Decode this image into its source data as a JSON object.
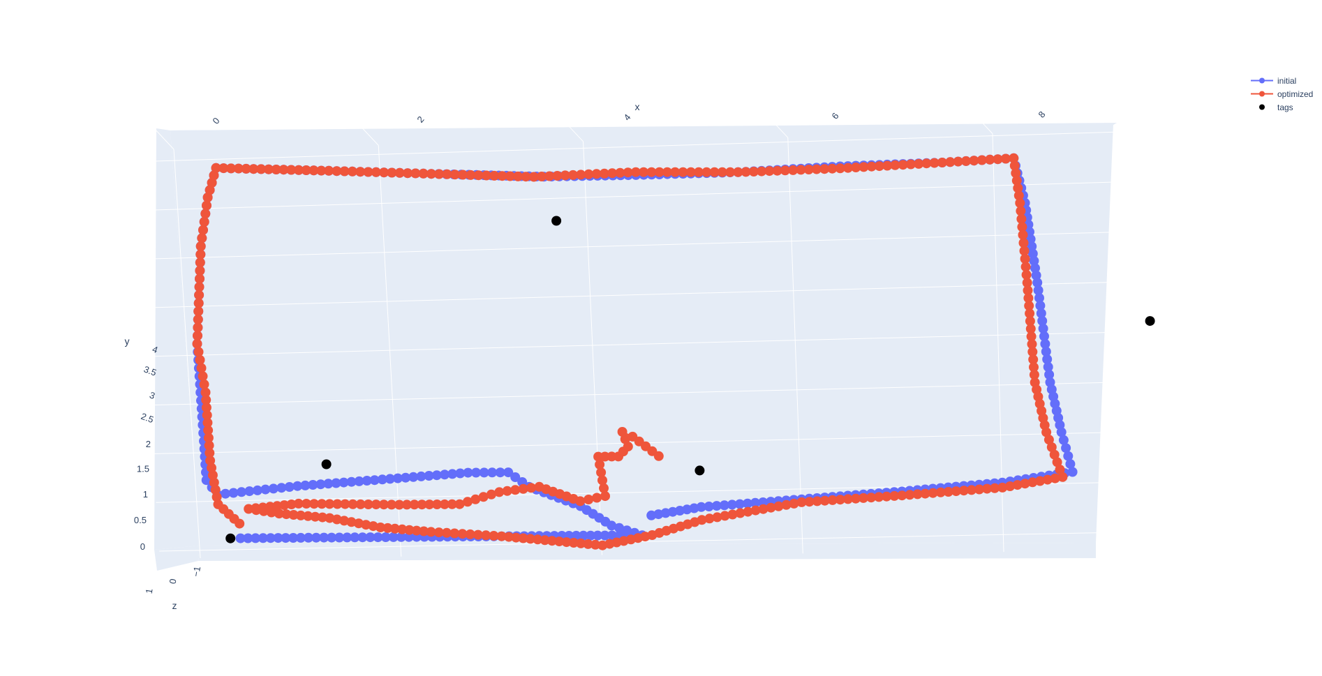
{
  "chart_data": {
    "type": "scatter3d",
    "axes": {
      "x": {
        "label": "x",
        "ticks": [
          0,
          2,
          4,
          6,
          8
        ],
        "tick_labels": [
          "0",
          "2",
          "4",
          "6",
          "8"
        ]
      },
      "y": {
        "label": "y",
        "ticks": [
          0,
          0.5,
          1,
          1.5,
          2,
          2.5,
          3,
          3.5,
          4
        ],
        "tick_labels": [
          "0",
          "0.5",
          "1",
          "1.5",
          "2",
          "2.5",
          "3",
          "3.5",
          "4"
        ]
      },
      "z": {
        "label": "z",
        "ticks": [
          1,
          0,
          -1
        ],
        "tick_labels": [
          "1",
          "0",
          "−1"
        ]
      }
    },
    "background_color": "#e5ecf6",
    "legend_position": "top-right",
    "series": [
      {
        "name": "initial",
        "mode": "lines+markers",
        "color": "#636efa",
        "points": [
          [
            0.4,
            0.0
          ],
          [
            1.0,
            0.0
          ],
          [
            2.0,
            0.0
          ],
          [
            3.0,
            0.0
          ],
          [
            3.6,
            0.0
          ],
          [
            4.1,
            0.0
          ],
          [
            4.4,
            0.0
          ],
          [
            4.1,
            0.1
          ],
          [
            3.8,
            0.3
          ],
          [
            3.3,
            0.5
          ],
          [
            3.1,
            0.65
          ],
          [
            2.7,
            0.65
          ],
          [
            2.0,
            0.6
          ],
          [
            1.0,
            0.53
          ],
          [
            0.2,
            0.45
          ],
          [
            0.1,
            0.6
          ],
          [
            0.1,
            1.0
          ],
          [
            0.1,
            1.5
          ],
          [
            0.1,
            2.0
          ],
          [
            0.15,
            2.5
          ],
          [
            0.2,
            3.0
          ],
          [
            0.3,
            3.5
          ],
          [
            0.4,
            3.8
          ],
          [
            1.5,
            3.75
          ],
          [
            2.5,
            3.7
          ],
          [
            3.6,
            3.65
          ],
          [
            4.5,
            3.65
          ],
          [
            5.5,
            3.66
          ],
          [
            6.5,
            3.7
          ],
          [
            7.5,
            3.72
          ],
          [
            8.2,
            3.75
          ],
          [
            8.3,
            3.3
          ],
          [
            8.4,
            2.5
          ],
          [
            8.5,
            1.5
          ],
          [
            8.6,
            1.0
          ],
          [
            8.7,
            0.6
          ],
          [
            8.0,
            0.5
          ],
          [
            7.0,
            0.42
          ],
          [
            6.0,
            0.35
          ],
          [
            5.0,
            0.28
          ],
          [
            4.5,
            0.2
          ]
        ]
      },
      {
        "name": "optimized",
        "mode": "lines+markers",
        "color": "#ef553b",
        "points": [
          [
            0.4,
            0.15
          ],
          [
            0.2,
            0.35
          ],
          [
            0.15,
            0.8
          ],
          [
            0.15,
            1.5
          ],
          [
            0.1,
            2.0
          ],
          [
            0.15,
            2.5
          ],
          [
            0.2,
            3.0
          ],
          [
            0.3,
            3.5
          ],
          [
            0.4,
            3.8
          ],
          [
            1.5,
            3.75
          ],
          [
            2.5,
            3.7
          ],
          [
            3.5,
            3.65
          ],
          [
            4.5,
            3.68
          ],
          [
            5.5,
            3.66
          ],
          [
            6.5,
            3.68
          ],
          [
            7.5,
            3.72
          ],
          [
            8.2,
            3.75
          ],
          [
            8.25,
            3.3
          ],
          [
            8.3,
            2.5
          ],
          [
            8.35,
            1.5
          ],
          [
            8.45,
            1.0
          ],
          [
            8.6,
            0.55
          ],
          [
            8.0,
            0.45
          ],
          [
            7.0,
            0.38
          ],
          [
            6.0,
            0.32
          ],
          [
            5.0,
            0.15
          ],
          [
            4.5,
            0.0
          ],
          [
            4.0,
            -0.1
          ],
          [
            3.5,
            -0.05
          ],
          [
            3.0,
            0.0
          ],
          [
            2.3,
            0.05
          ],
          [
            1.8,
            0.1
          ],
          [
            1.3,
            0.2
          ],
          [
            0.8,
            0.25
          ],
          [
            0.5,
            0.3
          ],
          [
            1.0,
            0.35
          ],
          [
            2.0,
            0.33
          ],
          [
            2.6,
            0.33
          ],
          [
            3.0,
            0.45
          ],
          [
            3.4,
            0.5
          ],
          [
            3.8,
            0.35
          ],
          [
            4.05,
            0.4
          ],
          [
            4.0,
            0.8
          ],
          [
            4.2,
            0.8
          ],
          [
            4.3,
            0.9
          ],
          [
            4.25,
            1.05
          ],
          [
            4.35,
            1.0
          ],
          [
            4.6,
            0.8
          ]
        ]
      },
      {
        "name": "tags",
        "mode": "markers",
        "color": "#000000",
        "points": [
          [
            0.3,
            0.0
          ],
          [
            1.3,
            0.75
          ],
          [
            3.7,
            3.2
          ],
          [
            5.0,
            0.65
          ],
          [
            9.5,
            2.1
          ]
        ]
      }
    ]
  }
}
